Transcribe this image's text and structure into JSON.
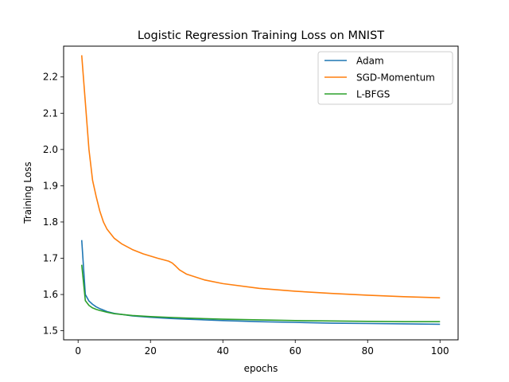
{
  "chart_data": {
    "type": "line",
    "title": "Logistic Regression Training Loss on MNIST",
    "xlabel": "epochs",
    "ylabel": "Training Loss",
    "xlim": [
      -4,
      105
    ],
    "ylim": [
      1.475,
      2.285
    ],
    "xticks": [
      0,
      20,
      40,
      60,
      80,
      100
    ],
    "yticks": [
      1.5,
      1.6,
      1.7,
      1.8,
      1.9,
      2.0,
      2.1,
      2.2
    ],
    "ytick_labels": [
      "1.5",
      "1.6",
      "1.7",
      "1.8",
      "1.9",
      "2.0",
      "2.1",
      "2.2"
    ],
    "grid": false,
    "legend_position": "top-right",
    "series": [
      {
        "name": "Adam",
        "color": "#1f77b4",
        "x": [
          1,
          2,
          3,
          4,
          5,
          6,
          8,
          10,
          15,
          20,
          25,
          30,
          40,
          50,
          60,
          70,
          80,
          90,
          100
        ],
        "y": [
          1.75,
          1.6,
          1.582,
          1.573,
          1.566,
          1.561,
          1.553,
          1.548,
          1.541,
          1.537,
          1.534,
          1.532,
          1.528,
          1.525,
          1.523,
          1.521,
          1.52,
          1.519,
          1.518
        ]
      },
      {
        "name": "SGD-Momentum",
        "color": "#ff7f0e",
        "x": [
          1,
          2,
          3,
          4,
          5,
          6,
          7,
          8,
          10,
          12,
          15,
          18,
          20,
          22,
          25,
          26,
          27,
          28,
          30,
          35,
          40,
          50,
          60,
          70,
          80,
          90,
          100
        ],
        "y": [
          2.26,
          2.13,
          2.0,
          1.915,
          1.87,
          1.83,
          1.8,
          1.78,
          1.755,
          1.74,
          1.724,
          1.712,
          1.706,
          1.7,
          1.692,
          1.687,
          1.678,
          1.668,
          1.656,
          1.64,
          1.63,
          1.617,
          1.609,
          1.603,
          1.598,
          1.594,
          1.591
        ]
      },
      {
        "name": "L-BFGS",
        "color": "#2ca02c",
        "x": [
          1,
          2,
          3,
          4,
          5,
          6,
          8,
          10,
          15,
          20,
          25,
          30,
          40,
          50,
          60,
          70,
          80,
          90,
          100
        ],
        "y": [
          1.682,
          1.583,
          1.57,
          1.563,
          1.559,
          1.556,
          1.551,
          1.547,
          1.542,
          1.539,
          1.537,
          1.535,
          1.532,
          1.53,
          1.528,
          1.527,
          1.526,
          1.525,
          1.525
        ]
      }
    ]
  }
}
